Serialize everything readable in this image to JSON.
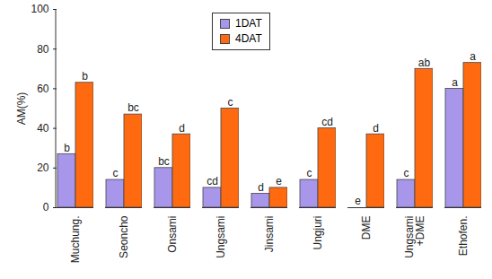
{
  "chart_data": {
    "type": "bar",
    "categories": [
      "Muchung.",
      "Seoncho",
      "Onsami",
      "Ungsami",
      "Jinsami",
      "Ungjuri",
      "DME",
      "Ungsami\n+DME",
      "Ethofen."
    ],
    "series": [
      {
        "name": "1DAT",
        "color": "#a796ea",
        "values": [
          27,
          14,
          20,
          10,
          7,
          14,
          0,
          14,
          60
        ],
        "annotations": [
          "b",
          "c",
          "bc",
          "cd",
          "d",
          "c",
          "e",
          "c",
          "a"
        ]
      },
      {
        "name": "4DAT",
        "color": "#ff6a10",
        "values": [
          63,
          47,
          37,
          50,
          10,
          40,
          37,
          70,
          73
        ],
        "annotations": [
          "b",
          "bc",
          "d",
          "c",
          "e",
          "cd",
          "d",
          "ab",
          "a"
        ]
      }
    ],
    "y_label": "AM(%)",
    "ylim": [
      0,
      100
    ],
    "yticks": [
      0,
      20,
      40,
      60,
      80,
      100
    ],
    "grid": false,
    "legend": "top"
  }
}
